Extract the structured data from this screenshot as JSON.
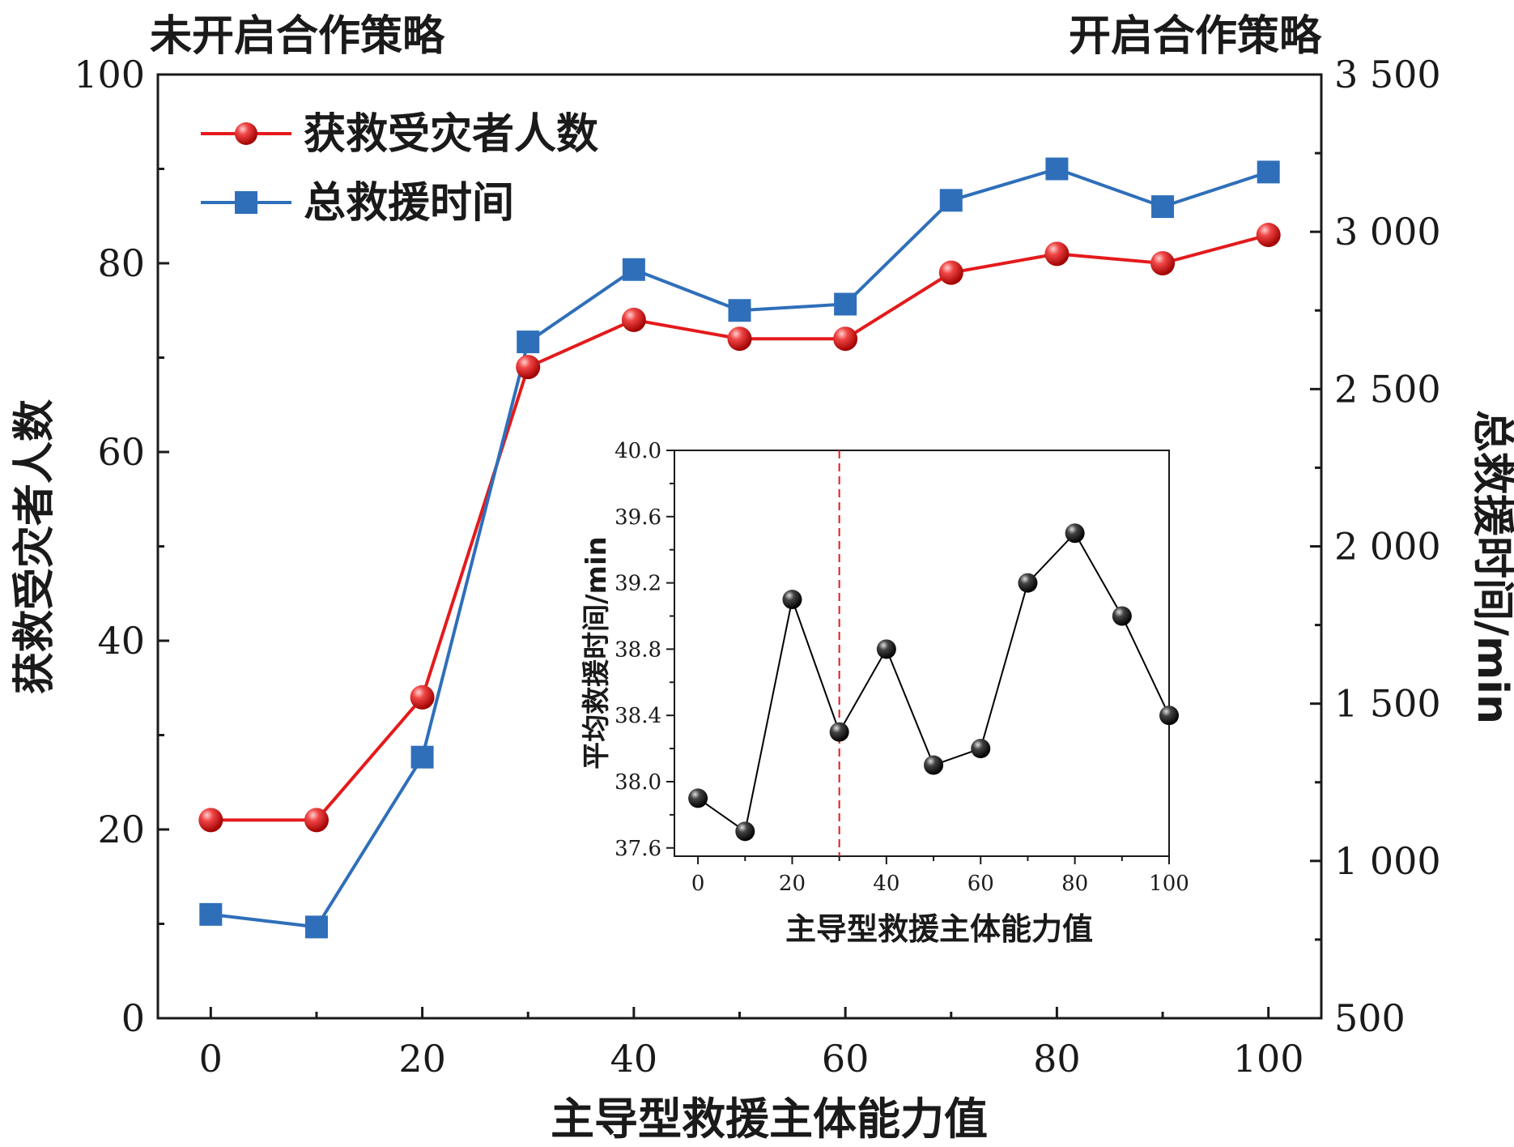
{
  "annotations": {
    "left": "未开启合作策略",
    "right": "开启合作策略"
  },
  "chart_data": [
    {
      "type": "line",
      "xlabel": "主导型救援主体能力值",
      "ylabel": "获救受灾者人数",
      "y2label": "总救援时间/min",
      "x_ticks": [
        "0",
        "20",
        "40",
        "60",
        "80",
        "100"
      ],
      "y_ticks": [
        "0",
        "20",
        "40",
        "60",
        "80",
        "100"
      ],
      "y2_ticks": [
        "500",
        "1 000",
        "1 500",
        "2 000",
        "2 500",
        "3 000",
        "3 500"
      ],
      "xlim": [
        -5,
        105
      ],
      "ylim": [
        0,
        100
      ],
      "y2lim": [
        500,
        3500
      ],
      "legend_position": "top-left",
      "x": [
        0,
        10,
        20,
        30,
        40,
        50,
        60,
        70,
        80,
        90,
        100
      ],
      "series": [
        {
          "name": "获救受灾者人数",
          "axis": "left",
          "color": "#e41a1c",
          "marker": "sphere",
          "values": [
            21,
            21,
            34,
            69,
            74,
            72,
            72,
            79,
            81,
            80,
            83
          ]
        },
        {
          "name": "总救援时间",
          "axis": "right",
          "color": "#2f6fba",
          "marker": "square",
          "values": [
            830,
            790,
            1330,
            2650,
            2880,
            2750,
            2770,
            3100,
            3200,
            3080,
            3190
          ]
        }
      ]
    },
    {
      "type": "line",
      "xlabel": "主导型救援主体能力值",
      "ylabel": "平均救援时间/min",
      "x_ticks": [
        "0",
        "20",
        "40",
        "60",
        "80",
        "100"
      ],
      "y_ticks": [
        "37.6",
        "38.0",
        "38.4",
        "38.8",
        "39.2",
        "39.6",
        "40.0"
      ],
      "xlim": [
        -5,
        100
      ],
      "ylim": [
        37.55,
        40.0
      ],
      "reference_line_x": 30,
      "x": [
        0,
        10,
        20,
        30,
        40,
        50,
        60,
        70,
        80,
        90,
        100
      ],
      "series": [
        {
          "color": "#000000",
          "marker": "sphere",
          "values": [
            37.9,
            37.7,
            39.1,
            38.3,
            38.8,
            38.1,
            38.2,
            39.2,
            39.5,
            39.0,
            38.4
          ]
        }
      ]
    }
  ]
}
